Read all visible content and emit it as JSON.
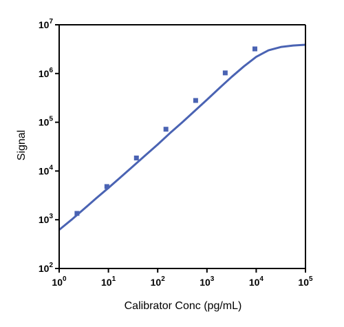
{
  "chart_data": {
    "type": "scatter",
    "title": "",
    "xlabel": "Calibrator Conc (pg/mL)",
    "ylabel": "Signal",
    "x_scale": "log",
    "y_scale": "log",
    "xlim": [
      1,
      100000
    ],
    "ylim": [
      100,
      10000000
    ],
    "x_ticks": [
      {
        "base": "10",
        "exp": "0",
        "value": 1
      },
      {
        "base": "10",
        "exp": "1",
        "value": 10
      },
      {
        "base": "10",
        "exp": "2",
        "value": 100
      },
      {
        "base": "10",
        "exp": "3",
        "value": 1000
      },
      {
        "base": "10",
        "exp": "4",
        "value": 10000
      },
      {
        "base": "10",
        "exp": "5",
        "value": 100000
      }
    ],
    "y_ticks": [
      {
        "base": "10",
        "exp": "2",
        "value": 100
      },
      {
        "base": "10",
        "exp": "3",
        "value": 1000
      },
      {
        "base": "10",
        "exp": "4",
        "value": 10000
      },
      {
        "base": "10",
        "exp": "5",
        "value": 100000
      },
      {
        "base": "10",
        "exp": "6",
        "value": 1000000
      },
      {
        "base": "10",
        "exp": "7",
        "value": 10000000
      }
    ],
    "grid": false,
    "legend": "none",
    "series": [
      {
        "points": [
          {
            "x": 2.3,
            "y": 1350
          },
          {
            "x": 9.3,
            "y": 4800
          },
          {
            "x": 37,
            "y": 18500
          },
          {
            "x": 147,
            "y": 72000
          },
          {
            "x": 590,
            "y": 280000
          },
          {
            "x": 2350,
            "y": 1030000
          },
          {
            "x": 9400,
            "y": 3200000
          }
        ],
        "color": "#4a63b3"
      }
    ],
    "fit_curve": {
      "x": [
        1,
        1.78,
        3.16,
        5.62,
        10,
        17.8,
        31.6,
        56.2,
        100,
        178,
        316,
        562,
        1000,
        1780,
        3160,
        5620,
        10000,
        17800,
        31600,
        56200,
        100000
      ],
      "y": [
        620,
        1000,
        1650,
        2750,
        4500,
        7500,
        12500,
        21000,
        35000,
        60000,
        100000,
        170000,
        290000,
        500000,
        850000,
        1400000,
        2200000,
        3000000,
        3500000,
        3750000,
        3900000
      ],
      "color": "#4a63b3"
    }
  }
}
